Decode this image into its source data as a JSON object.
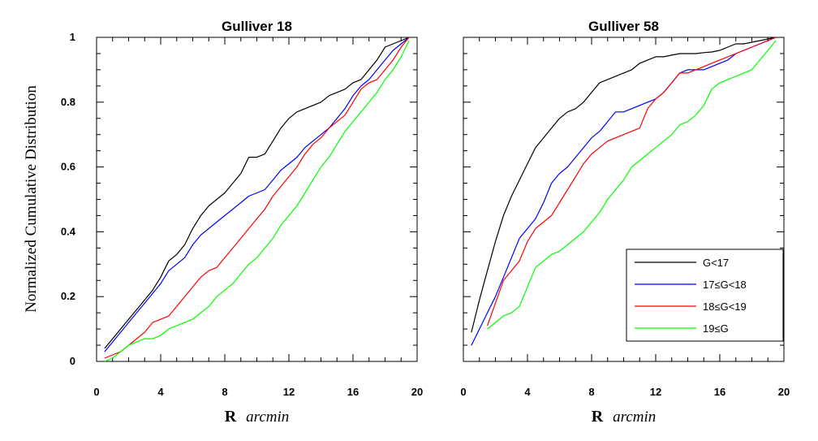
{
  "chart_data": {
    "ylabel": "Normalized Cumulative Distribution",
    "xlabel_symbol": "R",
    "xlabel_unit": "arcmin",
    "series_names": [
      "G<17",
      "17≤G<18",
      "18≤G<19",
      "19≤G"
    ],
    "series_colors": [
      "#000000",
      "#0000ff",
      "#ff0000",
      "#00ff00"
    ],
    "legend_position": "bottom-right of right panel",
    "panels": [
      {
        "type": "line",
        "title": "Gulliver 18",
        "xlim": [
          0,
          20
        ],
        "ylim": [
          0,
          1
        ],
        "xticks": [
          0,
          4,
          8,
          12,
          16,
          20
        ],
        "yticks": [
          0,
          0.2,
          0.4,
          0.6,
          0.8,
          1
        ],
        "ytick_labels": [
          "0",
          "0.2",
          "0.4",
          "0.6",
          "0.8",
          "1"
        ],
        "grid": false,
        "series": [
          {
            "x": [
              0.5,
              1,
              1.5,
              2,
              2.5,
              3,
              3.5,
              4,
              4.5,
              5,
              5.5,
              6,
              6.5,
              7,
              7.5,
              8,
              8.5,
              9,
              9.5,
              10,
              10.5,
              11,
              11.5,
              12,
              12.5,
              13,
              13.5,
              14,
              14.5,
              15,
              15.5,
              16,
              16.5,
              17,
              17.5,
              18,
              18.5,
              19,
              19.5
            ],
            "y": [
              0.04,
              0.07,
              0.1,
              0.13,
              0.16,
              0.19,
              0.22,
              0.26,
              0.31,
              0.33,
              0.36,
              0.41,
              0.45,
              0.48,
              0.5,
              0.52,
              0.55,
              0.58,
              0.63,
              0.63,
              0.64,
              0.68,
              0.72,
              0.75,
              0.77,
              0.78,
              0.79,
              0.8,
              0.82,
              0.83,
              0.84,
              0.86,
              0.87,
              0.9,
              0.93,
              0.97,
              0.98,
              0.99,
              1
            ]
          },
          {
            "x": [
              0.5,
              1,
              1.5,
              2,
              2.5,
              3,
              3.5,
              4,
              4.5,
              5,
              5.5,
              6,
              6.5,
              7,
              7.5,
              8,
              8.5,
              9,
              9.5,
              10,
              10.5,
              11,
              11.5,
              12,
              12.5,
              13,
              13.5,
              14,
              14.5,
              15,
              15.5,
              16,
              16.5,
              17,
              17.5,
              18,
              18.5,
              19,
              19.5
            ],
            "y": [
              0.03,
              0.06,
              0.09,
              0.12,
              0.15,
              0.18,
              0.21,
              0.24,
              0.28,
              0.3,
              0.32,
              0.36,
              0.39,
              0.41,
              0.43,
              0.45,
              0.47,
              0.49,
              0.51,
              0.52,
              0.53,
              0.56,
              0.59,
              0.61,
              0.63,
              0.66,
              0.68,
              0.7,
              0.72,
              0.75,
              0.78,
              0.82,
              0.85,
              0.87,
              0.9,
              0.93,
              0.96,
              0.98,
              1
            ]
          },
          {
            "x": [
              0.5,
              1,
              1.5,
              2,
              2.5,
              3,
              3.5,
              4,
              4.5,
              5,
              5.5,
              6,
              6.5,
              7,
              7.5,
              8,
              8.5,
              9,
              9.5,
              10,
              10.5,
              11,
              11.5,
              12,
              12.5,
              13,
              13.5,
              14,
              14.5,
              15,
              15.5,
              16,
              16.5,
              17,
              17.5,
              18,
              18.5,
              19,
              19.5
            ],
            "y": [
              0.01,
              0.02,
              0.03,
              0.05,
              0.07,
              0.09,
              0.12,
              0.13,
              0.14,
              0.17,
              0.2,
              0.23,
              0.26,
              0.28,
              0.29,
              0.32,
              0.35,
              0.38,
              0.41,
              0.44,
              0.47,
              0.51,
              0.54,
              0.57,
              0.6,
              0.64,
              0.67,
              0.69,
              0.72,
              0.74,
              0.76,
              0.8,
              0.84,
              0.86,
              0.87,
              0.9,
              0.93,
              0.97,
              1
            ]
          },
          {
            "x": [
              0.5,
              1,
              1.5,
              2,
              2.5,
              3,
              3.5,
              4,
              4.5,
              5,
              5.5,
              6,
              6.5,
              7,
              7.5,
              8,
              8.5,
              9,
              9.5,
              10,
              10.5,
              11,
              11.5,
              12,
              12.5,
              13,
              13.5,
              14,
              14.5,
              15,
              15.5,
              16,
              16.5,
              17,
              17.5,
              18,
              18.5,
              19,
              19.5
            ],
            "y": [
              0,
              0.01,
              0.03,
              0.05,
              0.06,
              0.07,
              0.07,
              0.08,
              0.1,
              0.11,
              0.12,
              0.13,
              0.15,
              0.17,
              0.2,
              0.22,
              0.24,
              0.27,
              0.3,
              0.32,
              0.35,
              0.38,
              0.42,
              0.45,
              0.48,
              0.52,
              0.56,
              0.6,
              0.63,
              0.67,
              0.71,
              0.74,
              0.77,
              0.8,
              0.83,
              0.87,
              0.9,
              0.94,
              0.99
            ]
          }
        ]
      },
      {
        "type": "line",
        "title": "Gulliver 58",
        "xlim": [
          0,
          20
        ],
        "ylim": [
          0,
          1
        ],
        "xticks": [
          0,
          4,
          8,
          12,
          16,
          20
        ],
        "yticks": [
          0,
          0.2,
          0.4,
          0.6,
          0.8,
          1
        ],
        "grid": false,
        "series": [
          {
            "x": [
              0.5,
              1,
              1.5,
              2,
              2.5,
              3,
              3.5,
              4,
              4.5,
              5,
              5.5,
              6,
              6.5,
              7,
              7.5,
              8,
              8.5,
              9,
              9.5,
              10,
              10.5,
              11,
              11.5,
              12,
              12.5,
              13,
              13.5,
              14,
              14.5,
              15,
              15.5,
              16,
              16.5,
              17,
              17.5,
              18,
              18.5,
              19,
              19.5
            ],
            "y": [
              0.09,
              0.19,
              0.28,
              0.37,
              0.45,
              0.51,
              0.56,
              0.61,
              0.66,
              0.69,
              0.72,
              0.75,
              0.77,
              0.78,
              0.8,
              0.83,
              0.86,
              0.87,
              0.88,
              0.89,
              0.9,
              0.92,
              0.93,
              0.94,
              0.94,
              0.945,
              0.95,
              0.95,
              0.95,
              0.953,
              0.955,
              0.96,
              0.97,
              0.98,
              0.98,
              0.985,
              0.99,
              0.995,
              1
            ]
          },
          {
            "x": [
              0.5,
              1,
              1.5,
              2,
              2.5,
              3,
              3.5,
              4,
              4.5,
              5,
              5.5,
              6,
              6.5,
              7,
              7.5,
              8,
              8.5,
              9,
              9.5,
              10,
              10.5,
              11,
              11.5,
              12,
              12.5,
              13,
              13.5,
              14,
              14.5,
              15,
              15.5,
              16,
              16.5,
              17,
              17.5,
              18,
              18.5,
              19,
              19.5
            ],
            "y": [
              0.05,
              0.1,
              0.15,
              0.2,
              0.26,
              0.32,
              0.38,
              0.41,
              0.44,
              0.49,
              0.55,
              0.58,
              0.6,
              0.63,
              0.66,
              0.69,
              0.71,
              0.74,
              0.77,
              0.77,
              0.78,
              0.79,
              0.8,
              0.81,
              0.83,
              0.86,
              0.89,
              0.9,
              0.9,
              0.9,
              0.91,
              0.92,
              0.93,
              0.95,
              0.96,
              0.97,
              0.98,
              0.99,
              1
            ]
          },
          {
            "x": [
              1.5,
              2,
              2.5,
              3,
              3.5,
              4,
              4.5,
              5,
              5.5,
              6,
              6.5,
              7,
              7.5,
              8,
              8.5,
              9,
              9.5,
              10,
              10.5,
              11,
              11.5,
              12,
              12.5,
              13,
              13.5,
              14,
              14.5,
              15,
              15.5,
              16,
              16.5,
              17,
              17.5,
              18,
              18.5,
              19,
              19.5
            ],
            "y": [
              0.11,
              0.18,
              0.25,
              0.28,
              0.31,
              0.37,
              0.41,
              0.43,
              0.45,
              0.49,
              0.53,
              0.57,
              0.61,
              0.64,
              0.66,
              0.68,
              0.69,
              0.7,
              0.71,
              0.72,
              0.78,
              0.81,
              0.83,
              0.86,
              0.89,
              0.89,
              0.9,
              0.91,
              0.92,
              0.93,
              0.94,
              0.95,
              0.96,
              0.97,
              0.98,
              0.99,
              1
            ]
          },
          {
            "x": [
              1.5,
              2,
              2.5,
              3,
              3.5,
              4,
              4.5,
              5,
              5.5,
              6,
              6.5,
              7,
              7.5,
              8,
              8.5,
              9,
              9.5,
              10,
              10.5,
              11,
              11.5,
              12,
              12.5,
              13,
              13.5,
              14,
              14.5,
              15,
              15.5,
              16,
              16.5,
              17,
              17.5,
              18,
              18.5,
              19,
              19.5
            ],
            "y": [
              0.1,
              0.12,
              0.14,
              0.15,
              0.17,
              0.23,
              0.29,
              0.31,
              0.33,
              0.34,
              0.36,
              0.38,
              0.4,
              0.43,
              0.46,
              0.5,
              0.53,
              0.56,
              0.6,
              0.62,
              0.64,
              0.66,
              0.68,
              0.7,
              0.73,
              0.74,
              0.76,
              0.79,
              0.84,
              0.86,
              0.87,
              0.88,
              0.89,
              0.9,
              0.93,
              0.96,
              0.99
            ]
          }
        ]
      }
    ]
  }
}
